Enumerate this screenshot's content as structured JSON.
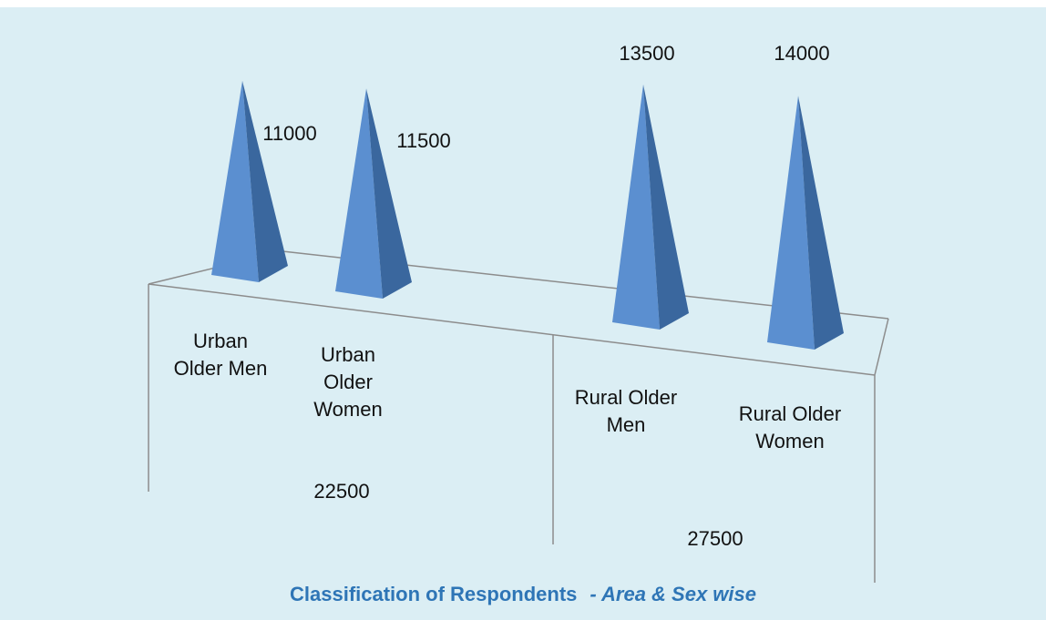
{
  "chart_data": {
    "type": "pyramid",
    "title": "Classification of Respondents",
    "subtitle": "- Area & Sex wise",
    "categories": [
      "Urban Older Men",
      "Urban Older Women",
      "Rural Older Men",
      "Rural Older Women"
    ],
    "values": [
      11000,
      11500,
      13500,
      14000
    ],
    "group_totals": [
      22500,
      27500
    ],
    "color": "#5b8fd0"
  }
}
